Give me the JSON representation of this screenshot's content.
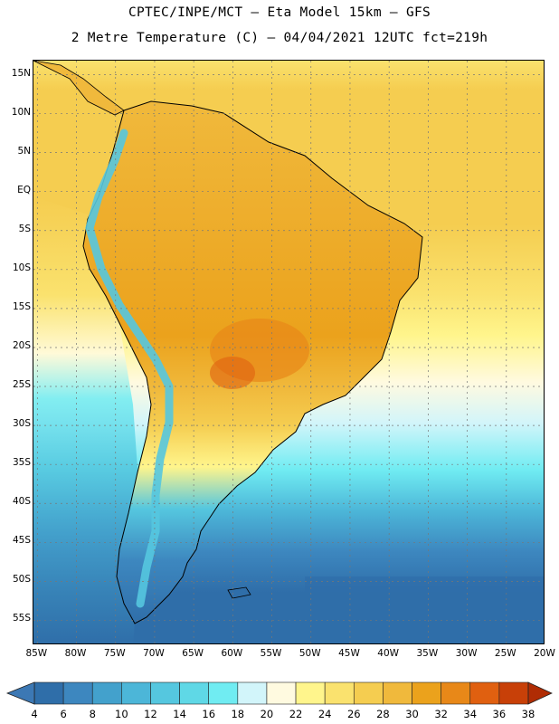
{
  "title_line1": "CPTEC/INPE/MCT –  Eta Model 15km – GFS",
  "title_line2": "2 Metre Temperature (C) – 04/04/2021 12UTC fct=219h",
  "map": {
    "lat_labels": [
      "15N",
      "10N",
      "5N",
      "EQ",
      "5S",
      "10S",
      "15S",
      "20S",
      "25S",
      "30S",
      "35S",
      "40S",
      "45S",
      "50S",
      "55S"
    ],
    "lon_labels": [
      "85W",
      "80W",
      "75W",
      "70W",
      "65W",
      "60W",
      "55W",
      "50W",
      "45W",
      "40W",
      "35W",
      "30W",
      "25W",
      "20W"
    ],
    "lat_values": [
      15,
      10,
      5,
      0,
      -5,
      -10,
      -15,
      -20,
      -25,
      -30,
      -35,
      -40,
      -45,
      -50,
      -55
    ],
    "lon_values": [
      -85,
      -80,
      -75,
      -70,
      -65,
      -60,
      -55,
      -50,
      -45,
      -40,
      -35,
      -30,
      -25,
      -20
    ],
    "lat_range": [
      -58.2,
      16.8
    ],
    "lon_range": [
      -85.5,
      -20.0
    ]
  },
  "colorbar": {
    "unit": "C",
    "labels": [
      "4",
      "6",
      "8",
      "10",
      "12",
      "14",
      "16",
      "18",
      "20",
      "22",
      "24",
      "26",
      "28",
      "30",
      "32",
      "34",
      "36",
      "38"
    ],
    "colors": [
      "#3c78b4",
      "#2f6ea9",
      "#3d87bf",
      "#43a1cc",
      "#4cb6d8",
      "#55c7df",
      "#5fd8e6",
      "#70ecf2",
      "#d2f5fa",
      "#fffae0",
      "#fff58c",
      "#fae26e",
      "#f5cd50",
      "#f0b93c",
      "#eba21c",
      "#e88818",
      "#e06010",
      "#c84008",
      "#b02c04"
    ]
  },
  "icons": {
    "left_arrow": "colorbar-low-arrow-icon",
    "right_arrow": "colorbar-high-arrow-icon"
  }
}
